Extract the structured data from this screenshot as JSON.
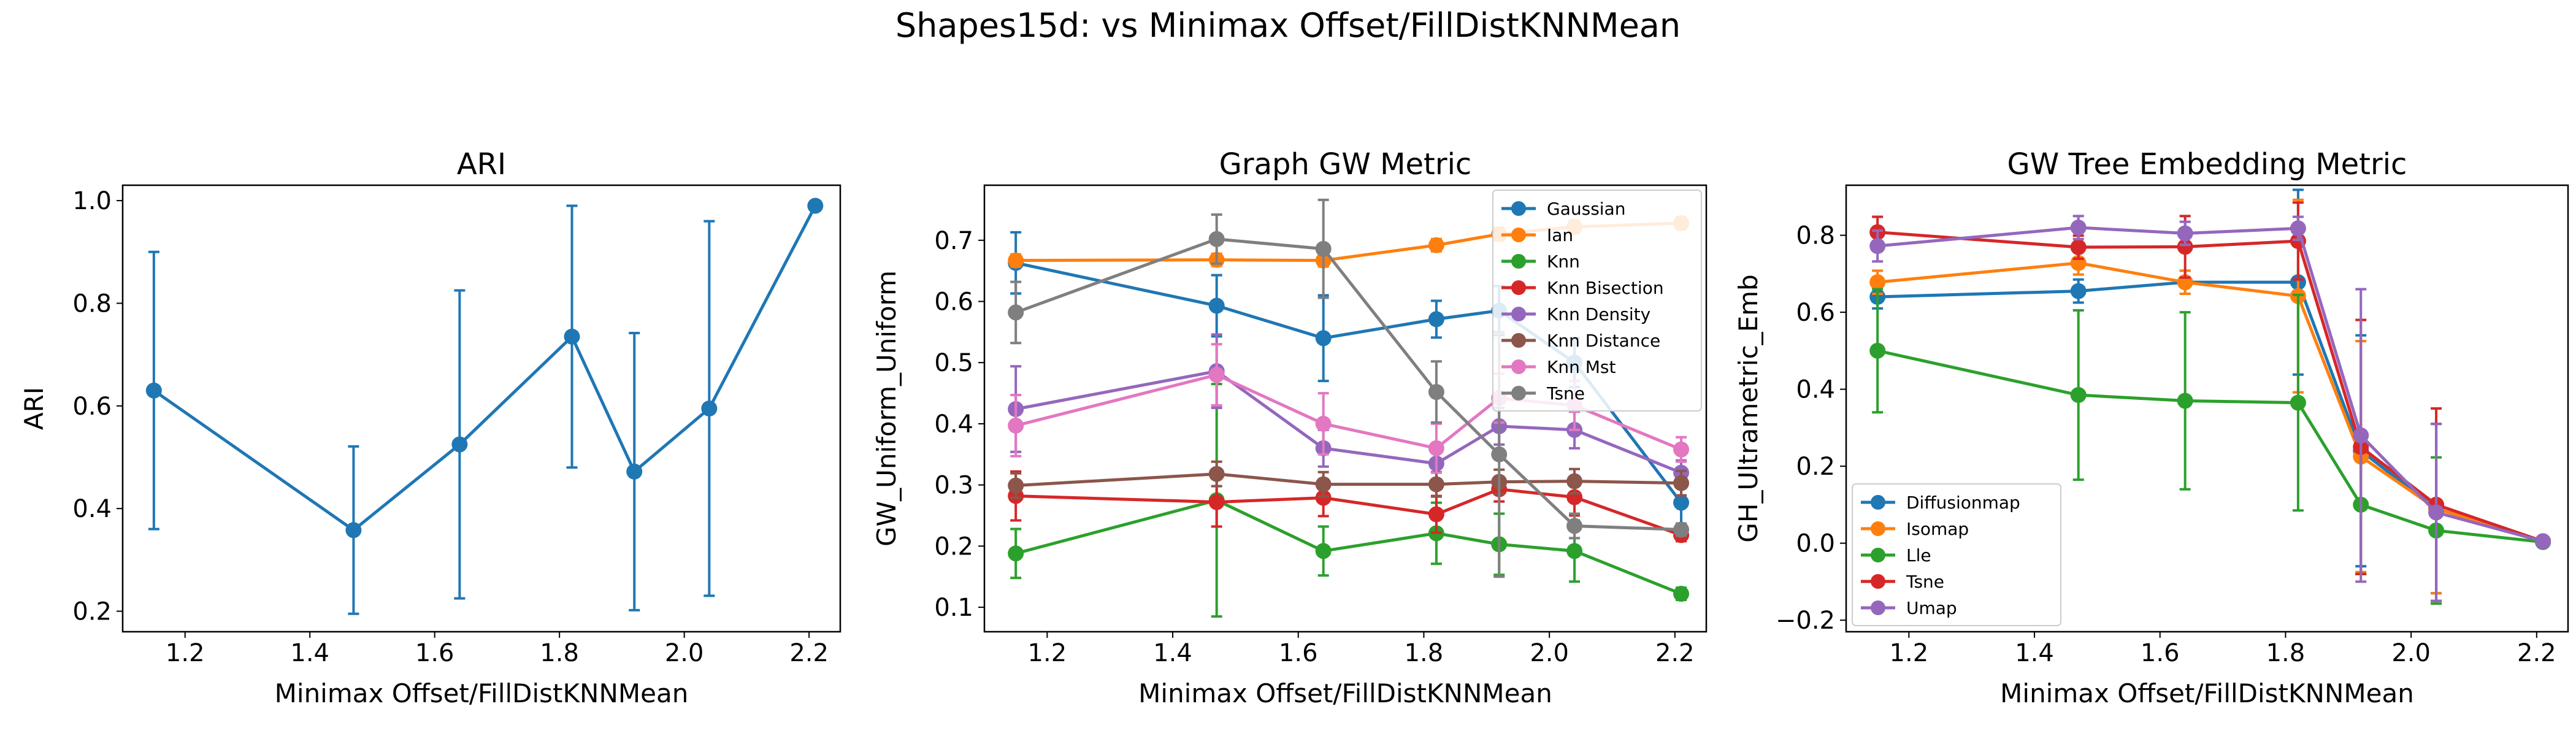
{
  "figure": {
    "suptitle": "Shapes15d: vs Minimax Offset/FillDistKNNMean"
  },
  "chart_data": [
    {
      "type": "line",
      "title": "ARI",
      "xlabel": "Minimax Offset/FillDistKNNMean",
      "ylabel": "ARI",
      "xlim": [
        1.1,
        2.25
      ],
      "ylim": [
        0.16,
        1.03
      ],
      "xticks": [
        1.2,
        1.4,
        1.6,
        1.8,
        2.0,
        2.2
      ],
      "yticks": [
        0.2,
        0.4,
        0.6,
        0.8,
        1.0
      ],
      "xtick_labels": [
        "1.2",
        "1.4",
        "1.6",
        "1.8",
        "2.0",
        "2.2"
      ],
      "ytick_labels": [
        "0.2",
        "0.4",
        "0.6",
        "0.8",
        "1.0"
      ],
      "x": [
        1.15,
        1.47,
        1.64,
        1.82,
        1.92,
        2.04,
        2.21
      ],
      "legend": null,
      "series": [
        {
          "name": "",
          "color": "#1f77b4",
          "y": [
            0.63,
            0.358,
            0.525,
            0.735,
            0.472,
            0.595,
            0.99
          ],
          "err": [
            0.27,
            0.163,
            0.3,
            0.255,
            0.27,
            0.365,
            0
          ]
        }
      ]
    },
    {
      "type": "line",
      "title": "Graph GW Metric",
      "xlabel": "Minimax Offset/FillDistKNNMean",
      "ylabel": "GW_Uniform_Uniform",
      "xlim": [
        1.1,
        2.25
      ],
      "ylim": [
        0.06,
        0.79
      ],
      "xticks": [
        1.2,
        1.4,
        1.6,
        1.8,
        2.0,
        2.2
      ],
      "yticks": [
        0.1,
        0.2,
        0.3,
        0.4,
        0.5,
        0.6,
        0.7
      ],
      "xtick_labels": [
        "1.2",
        "1.4",
        "1.6",
        "1.8",
        "2.0",
        "2.2"
      ],
      "ytick_labels": [
        "0.1",
        "0.2",
        "0.3",
        "0.4",
        "0.5",
        "0.6",
        "0.7"
      ],
      "x": [
        1.15,
        1.47,
        1.64,
        1.82,
        1.92,
        2.04,
        2.21
      ],
      "legend": "top-right",
      "series": [
        {
          "name": "Gaussian",
          "color": "#1f77b4",
          "y": [
            0.663,
            0.593,
            0.54,
            0.571,
            0.585,
            0.5,
            0.271
          ],
          "err": [
            0.05,
            0.05,
            0.07,
            0.03,
            0.04,
            0.04,
            0.04
          ]
        },
        {
          "name": "Ian",
          "color": "#ff7f0e",
          "y": [
            0.667,
            0.668,
            0.667,
            0.692,
            0.71,
            0.722,
            0.728
          ],
          "err": [
            0.01,
            0.01,
            0.01,
            0.01,
            0.01,
            0.01,
            0.01
          ]
        },
        {
          "name": "Knn",
          "color": "#2ca02c",
          "y": [
            0.188,
            0.275,
            0.192,
            0.221,
            0.203,
            0.192,
            0.122
          ],
          "err": [
            0.04,
            0.19,
            0.04,
            0.05,
            0.05,
            0.05,
            0.01
          ]
        },
        {
          "name": "Knn Bisection",
          "color": "#d62728",
          "y": [
            0.282,
            0.272,
            0.279,
            0.252,
            0.293,
            0.28,
            0.218
          ],
          "err": [
            0.04,
            0.04,
            0.03,
            0.03,
            0.02,
            0.03,
            0.01
          ]
        },
        {
          "name": "Knn Density",
          "color": "#9467bd",
          "y": [
            0.424,
            0.486,
            0.36,
            0.335,
            0.396,
            0.39,
            0.32
          ],
          "err": [
            0.07,
            0.06,
            0.03,
            0.03,
            0.03,
            0.03,
            0.02
          ]
        },
        {
          "name": "Knn Distance",
          "color": "#8c564b",
          "y": [
            0.299,
            0.318,
            0.301,
            0.301,
            0.305,
            0.306,
            0.303
          ],
          "err": [
            0.02,
            0.02,
            0.02,
            0.02,
            0.02,
            0.02,
            0.02
          ]
        },
        {
          "name": "Knn Mst",
          "color": "#e377c2",
          "y": [
            0.397,
            0.48,
            0.4,
            0.36,
            0.442,
            0.43,
            0.358
          ],
          "err": [
            0.05,
            0.05,
            0.05,
            0.04,
            0.04,
            0.04,
            0.02
          ]
        },
        {
          "name": "Tsne",
          "color": "#7f7f7f",
          "y": [
            0.582,
            0.702,
            0.686,
            0.452,
            0.35,
            0.233,
            0.227
          ],
          "err": [
            0.05,
            0.04,
            0.08,
            0.05,
            0.2,
            0.02,
            0.01
          ]
        }
      ]
    },
    {
      "type": "line",
      "title": "GW Tree Embedding Metric",
      "xlabel": "Minimax Offset/FillDistKNNMean",
      "ylabel": "GH_Ultrametric_Emb",
      "xlim": [
        1.1,
        2.25
      ],
      "ylim": [
        -0.23,
        0.93
      ],
      "xticks": [
        1.2,
        1.4,
        1.6,
        1.8,
        2.0,
        2.2
      ],
      "yticks": [
        -0.2,
        0.0,
        0.2,
        0.4,
        0.6,
        0.8
      ],
      "xtick_labels": [
        "1.2",
        "1.4",
        "1.6",
        "1.8",
        "2.0",
        "2.2"
      ],
      "ytick_labels": [
        "−0.2",
        "0.0",
        "0.2",
        "0.4",
        "0.6",
        "0.8"
      ],
      "x": [
        1.15,
        1.47,
        1.64,
        1.82,
        1.92,
        2.04,
        2.21
      ],
      "legend": "bottom-left",
      "series": [
        {
          "name": "Diffusionmap",
          "color": "#1f77b4",
          "y": [
            0.64,
            0.655,
            0.678,
            0.678,
            0.24,
            0.09,
            0.005
          ],
          "err": [
            0.03,
            0.03,
            0.03,
            0.24,
            0.3,
            0.22,
            0.01
          ]
        },
        {
          "name": "Isomap",
          "color": "#ff7f0e",
          "y": [
            0.678,
            0.728,
            0.678,
            0.642,
            0.225,
            0.09,
            0.005
          ],
          "err": [
            0.03,
            0.03,
            0.03,
            0.25,
            0.3,
            0.22,
            0.01
          ]
        },
        {
          "name": "Lle",
          "color": "#2ca02c",
          "y": [
            0.5,
            0.385,
            0.37,
            0.365,
            0.1,
            0.033,
            0.003
          ],
          "err": [
            0.16,
            0.22,
            0.23,
            0.28,
            0.18,
            0.19,
            0.01
          ]
        },
        {
          "name": "Tsne",
          "color": "#d62728",
          "y": [
            0.808,
            0.769,
            0.77,
            0.785,
            0.25,
            0.1,
            0.005
          ],
          "err": [
            0.04,
            0.03,
            0.08,
            0.1,
            0.33,
            0.25,
            0.01
          ]
        },
        {
          "name": "Umap",
          "color": "#9467bd",
          "y": [
            0.772,
            0.82,
            0.805,
            0.818,
            0.28,
            0.08,
            0.005
          ],
          "err": [
            0.04,
            0.03,
            0.03,
            0.03,
            0.38,
            0.23,
            0.01
          ]
        }
      ]
    }
  ]
}
